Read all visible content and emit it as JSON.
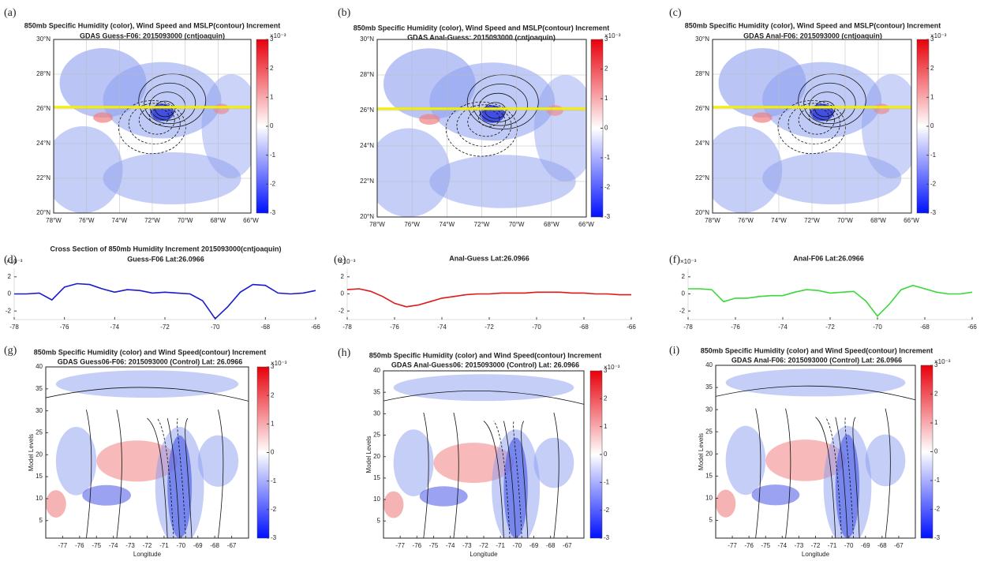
{
  "chart_data": [
    {
      "type": "map",
      "panel_label": "(a)",
      "title": "850mb Specific Humidity (color), Wind Speed and MSLP(contour) Increment",
      "subtitle": "GDAS Guess-F06: 2015093000 (cntjoaquin)",
      "xlim": [
        -78,
        -66
      ],
      "ylim": [
        20,
        30
      ],
      "xticks": [
        {
          "value": -78,
          "label": "78°W"
        },
        {
          "value": -76,
          "label": "76°W"
        },
        {
          "value": -74,
          "label": "74°W"
        },
        {
          "value": -72,
          "label": "72°W"
        },
        {
          "value": -70,
          "label": "70°W"
        },
        {
          "value": -68,
          "label": "68°W"
        },
        {
          "value": -66,
          "label": "66°W"
        }
      ],
      "yticks": [
        {
          "value": 20,
          "label": "20°N"
        },
        {
          "value": 22,
          "label": "22°N"
        },
        {
          "value": 24,
          "label": "24°N"
        },
        {
          "value": 26,
          "label": "26°N"
        },
        {
          "value": 28,
          "label": "28°N"
        },
        {
          "value": 30,
          "label": "30°N"
        }
      ],
      "grid": true,
      "clim": [
        -3,
        3
      ],
      "cticks": [
        -3,
        -2,
        -1,
        0,
        1,
        2,
        3
      ],
      "cbar_label": "×10⁻³"
    },
    {
      "type": "map",
      "panel_label": "(b)",
      "title": "850mb Specific Humidity (color), Wind Speed and MSLP(contour) Increment",
      "subtitle": "GDAS Anal-Guess: 2015093000 (cntjoaquin)",
      "xlim": [
        -78,
        -66
      ],
      "ylim": [
        20,
        30
      ],
      "xticks": [
        {
          "value": -78,
          "label": "78°W"
        },
        {
          "value": -76,
          "label": "76°W"
        },
        {
          "value": -74,
          "label": "74°W"
        },
        {
          "value": -72,
          "label": "72°W"
        },
        {
          "value": -70,
          "label": "70°W"
        },
        {
          "value": -68,
          "label": "68°W"
        },
        {
          "value": -66,
          "label": "66°W"
        }
      ],
      "yticks": [
        {
          "value": 20,
          "label": "20°N"
        },
        {
          "value": 22,
          "label": "22°N"
        },
        {
          "value": 24,
          "label": "24°N"
        },
        {
          "value": 26,
          "label": "26°N"
        },
        {
          "value": 28,
          "label": "28°N"
        },
        {
          "value": 30,
          "label": "30°N"
        }
      ],
      "grid": true,
      "clim": [
        -3,
        3
      ],
      "cticks": [
        -3,
        -2,
        -1,
        0,
        1,
        2,
        3
      ],
      "cbar_label": "×10⁻³"
    },
    {
      "type": "map",
      "panel_label": "(c)",
      "title": "850mb Specific Humidity (color), Wind Speed and MSLP(contour) Increment",
      "subtitle": "GDAS Anal-F06: 2015093000 (cntjoaquin)",
      "xlim": [
        -78,
        -66
      ],
      "ylim": [
        20,
        30
      ],
      "xticks": [
        {
          "value": -78,
          "label": "78°W"
        },
        {
          "value": -76,
          "label": "76°W"
        },
        {
          "value": -74,
          "label": "74°W"
        },
        {
          "value": -72,
          "label": "72°W"
        },
        {
          "value": -70,
          "label": "70°W"
        },
        {
          "value": -68,
          "label": "68°W"
        },
        {
          "value": -66,
          "label": "66°W"
        }
      ],
      "yticks": [
        {
          "value": 20,
          "label": "20°N"
        },
        {
          "value": 22,
          "label": "22°N"
        },
        {
          "value": 24,
          "label": "24°N"
        },
        {
          "value": 26,
          "label": "26°N"
        },
        {
          "value": 28,
          "label": "28°N"
        },
        {
          "value": 30,
          "label": "30°N"
        }
      ],
      "grid": true,
      "clim": [
        -3,
        3
      ],
      "cticks": [
        -3,
        -2,
        -1,
        0,
        1,
        2,
        3
      ],
      "cbar_label": "×10⁻³"
    },
    {
      "type": "line",
      "panel_label": "(d)",
      "title": "Cross Section of 850mb Humidity Increment 2015093000(cntjoaquin)",
      "subtitle": "Guess-F06 Lat:26.0966",
      "xlim": [
        -78,
        -66
      ],
      "ylim": [
        -3,
        3
      ],
      "xticks": [
        -78,
        -76,
        -74,
        -72,
        -70,
        -68,
        -66
      ],
      "yticks": [
        -2,
        0,
        2
      ],
      "y_scale_label": "×10⁻³",
      "x": [
        -78,
        -77.5,
        -77,
        -76.5,
        -76,
        -75.5,
        -75,
        -74.5,
        -74,
        -73.5,
        -73,
        -72.5,
        -72,
        -71.5,
        -71,
        -70.5,
        -70,
        -69.5,
        -69,
        -68.5,
        -68,
        -67.5,
        -67,
        -66.5,
        -66
      ],
      "series": [
        {
          "color": "#1a1ad0",
          "values": [
            0,
            0,
            0.1,
            -0.7,
            0.8,
            1.2,
            1.1,
            0.6,
            0.2,
            0.5,
            0.4,
            0.1,
            0.2,
            0.1,
            0,
            -0.8,
            -2.9,
            -1.5,
            0.2,
            1.1,
            1,
            0.1,
            0,
            0.1,
            0.4
          ]
        }
      ]
    },
    {
      "type": "line",
      "panel_label": "(e)",
      "title": "Anal-Guess Lat:26.0966",
      "xlim": [
        -78,
        -66
      ],
      "ylim": [
        -3,
        3
      ],
      "xticks": [
        -78,
        -76,
        -74,
        -72,
        -70,
        -68,
        -66
      ],
      "yticks": [
        -2,
        0,
        2
      ],
      "y_scale_label": "×10⁻³",
      "x": [
        -78,
        -77.5,
        -77,
        -76.5,
        -76,
        -75.5,
        -75,
        -74.5,
        -74,
        -73.5,
        -73,
        -72.5,
        -72,
        -71.5,
        -71,
        -70.5,
        -70,
        -69.5,
        -69,
        -68.5,
        -68,
        -67.5,
        -67,
        -66.5,
        -66
      ],
      "series": [
        {
          "color": "#e01818",
          "values": [
            0.5,
            0.6,
            0.3,
            -0.3,
            -1.1,
            -1.5,
            -1.3,
            -0.9,
            -0.5,
            -0.3,
            -0.1,
            0,
            0,
            0.1,
            0.1,
            0.1,
            0.2,
            0.2,
            0.2,
            0.1,
            0.1,
            0,
            0,
            -0.1,
            -0.1
          ]
        }
      ]
    },
    {
      "type": "line",
      "panel_label": "(f)",
      "title": "Anal-F06 Lat:26.0966",
      "xlim": [
        -78,
        -66
      ],
      "ylim": [
        -3,
        3
      ],
      "xticks": [
        -78,
        -76,
        -74,
        -72,
        -70,
        -68,
        -66
      ],
      "yticks": [
        -2,
        0,
        2
      ],
      "y_scale_label": "×10⁻³",
      "x": [
        -78,
        -77.5,
        -77,
        -76.5,
        -76,
        -75.5,
        -75,
        -74.5,
        -74,
        -73.5,
        -73,
        -72.5,
        -72,
        -71.5,
        -71,
        -70.5,
        -70,
        -69.5,
        -69,
        -68.5,
        -68,
        -67.5,
        -67,
        -66.5,
        -66
      ],
      "series": [
        {
          "color": "#3ad83a",
          "values": [
            0.6,
            0.6,
            0.5,
            -0.9,
            -0.5,
            -0.5,
            -0.3,
            -0.2,
            -0.2,
            0.2,
            0.5,
            0.4,
            0.1,
            0.2,
            0.3,
            -0.8,
            -2.6,
            -1.2,
            0.5,
            1,
            0.6,
            0.2,
            0,
            0,
            0.2
          ]
        }
      ]
    },
    {
      "type": "section",
      "panel_label": "(g)",
      "title": "850mb Specific Humidity (color) and Wind Speed(contour) Increment",
      "subtitle": "GDAS Guess06-F06: 2015093000 (Control)     Lat: 26.0966",
      "xlim": [
        -78,
        -66
      ],
      "ylim": [
        1,
        40
      ],
      "xticks": [
        -77,
        -76,
        -75,
        -74,
        -73,
        -72,
        -71,
        -70,
        -69,
        -68,
        -67
      ],
      "yticks": [
        5,
        10,
        15,
        20,
        25,
        30,
        35,
        40
      ],
      "x_label": "Longitude",
      "y_label": "Model Levels",
      "clim": [
        -3,
        3
      ],
      "cticks": [
        -3,
        -2,
        -1,
        0,
        1,
        2,
        3
      ],
      "cbar_label": "×10⁻³"
    },
    {
      "type": "section",
      "panel_label": "(h)",
      "title": "850mb Specific Humidity (color) and Wind Speed(contour) Increment",
      "subtitle": "GDAS Anal-Guess06: 2015093000 (Control)     Lat: 26.0966",
      "xlim": [
        -78,
        -66
      ],
      "ylim": [
        1,
        40
      ],
      "xticks": [
        -77,
        -76,
        -75,
        -74,
        -73,
        -72,
        -71,
        -70,
        -69,
        -68,
        -67
      ],
      "yticks": [
        5,
        10,
        15,
        20,
        25,
        30,
        35,
        40
      ],
      "x_label": "Longitude",
      "y_label": "Model Levels",
      "clim": [
        -3,
        3
      ],
      "cticks": [
        -3,
        -2,
        -1,
        0,
        1,
        2,
        3
      ],
      "cbar_label": "×10⁻³"
    },
    {
      "type": "section",
      "panel_label": "(i)",
      "title": "850mb Specific Humidity (color) and Wind Speed(contour) Increment",
      "subtitle": "GDAS Anal-F06: 2015093000 (Control)     Lat: 26.0966",
      "xlim": [
        -78,
        -66
      ],
      "ylim": [
        1,
        40
      ],
      "xticks": [
        -77,
        -76,
        -75,
        -74,
        -73,
        -72,
        -71,
        -70,
        -69,
        -68,
        -67
      ],
      "yticks": [
        5,
        10,
        15,
        20,
        25,
        30,
        35,
        40
      ],
      "x_label": "Longitude",
      "y_label": "Model Levels",
      "clim": [
        -3,
        3
      ],
      "cticks": [
        -3,
        -2,
        -1,
        0,
        1,
        2,
        3
      ],
      "cbar_label": "×10⁻³"
    }
  ]
}
